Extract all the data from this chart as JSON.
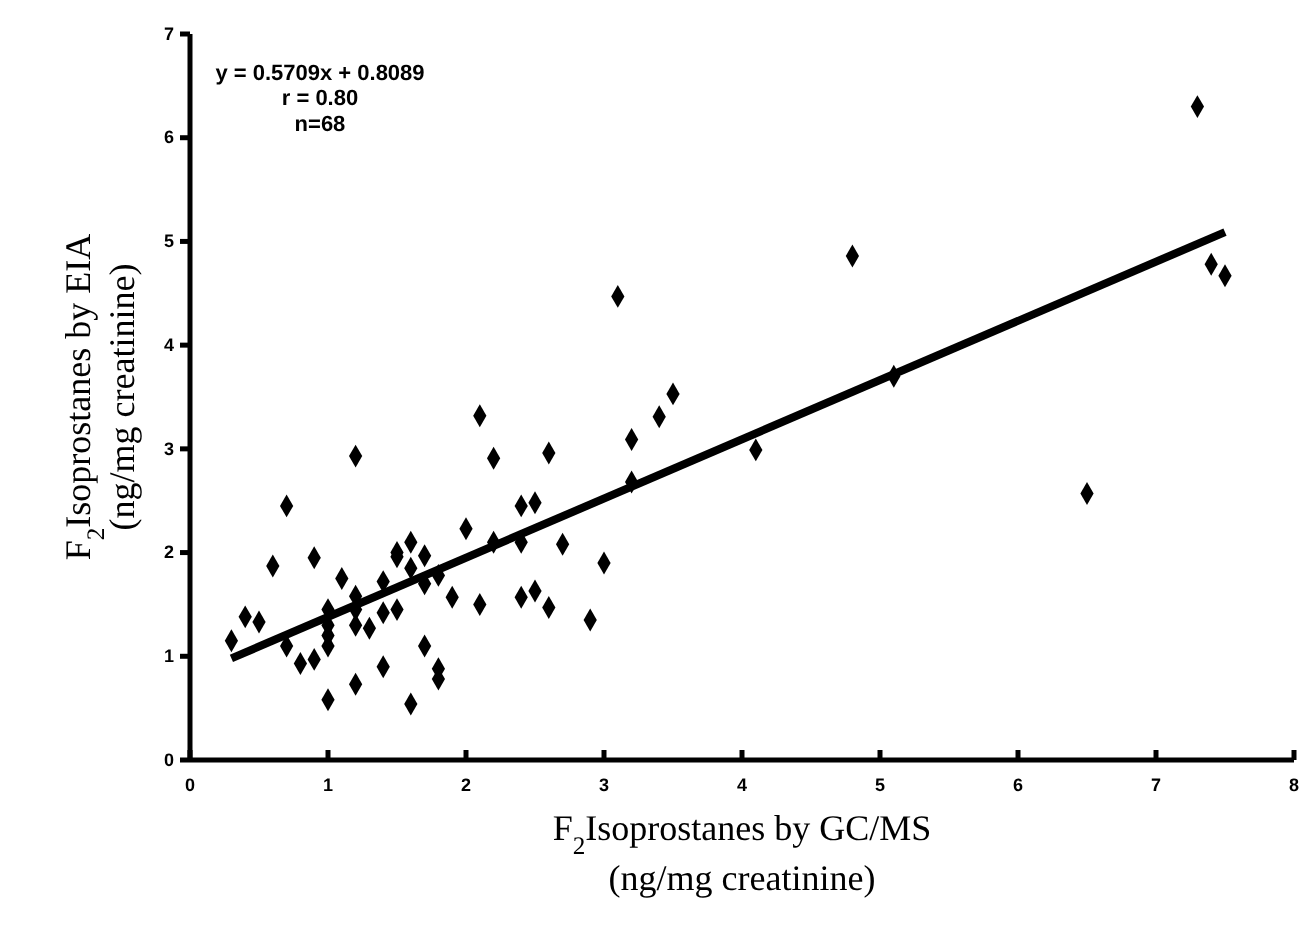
{
  "chart_data": {
    "type": "scatter",
    "xlabel": "F$_{2}$Isoprostanes by GC/MS\n(ng/mg creatinine)",
    "ylabel": "F$_{2}$Isoprostanes by EIA\n(ng/mg creatinine)",
    "annotations": [
      "y  =  0.5709x  +  0.8089\nr  =  0.80\nn=68"
    ],
    "xlim": [
      0,
      8
    ],
    "xticks": [
      0,
      1,
      2,
      3,
      4,
      5,
      6,
      7,
      8
    ],
    "ylim": [
      0,
      7
    ],
    "yticks": [
      0,
      1,
      2,
      3,
      4,
      5,
      6,
      7
    ],
    "grid": false,
    "marker": "diamond",
    "series": [
      {
        "color": "#000000",
        "x": [
          0.3,
          0.4,
          0.5,
          0.6,
          0.7,
          0.7,
          0.8,
          0.9,
          0.9,
          1.0,
          1.0,
          1.0,
          1.0,
          1.0,
          1.1,
          1.2,
          1.2,
          1.2,
          1.2,
          1.2,
          1.3,
          1.4,
          1.4,
          1.4,
          1.5,
          1.5,
          1.5,
          1.6,
          1.6,
          1.6,
          1.7,
          1.7,
          1.7,
          1.8,
          1.8,
          1.8,
          1.9,
          2.0,
          2.1,
          2.1,
          2.2,
          2.2,
          2.4,
          2.4,
          2.4,
          2.5,
          2.5,
          2.6,
          2.6,
          2.7,
          2.9,
          3.0,
          3.1,
          3.2,
          3.2,
          3.4,
          3.5,
          4.1,
          4.8,
          5.1,
          6.5,
          7.3,
          7.4,
          7.5
        ],
        "values": [
          1.15,
          1.38,
          1.33,
          1.87,
          2.45,
          1.1,
          0.93,
          0.97,
          1.95,
          0.58,
          1.1,
          1.3,
          1.45,
          1.2,
          1.75,
          2.93,
          0.73,
          1.58,
          1.3,
          1.45,
          1.27,
          1.72,
          0.9,
          1.42,
          1.45,
          1.96,
          2.0,
          0.54,
          2.1,
          1.85,
          1.97,
          1.7,
          1.1,
          0.88,
          0.78,
          1.78,
          1.57,
          2.23,
          3.32,
          1.5,
          2.91,
          2.1,
          2.45,
          2.1,
          1.57,
          2.48,
          1.63,
          2.96,
          1.47,
          2.08,
          1.35,
          1.9,
          4.47,
          3.09,
          2.68,
          3.31,
          3.53,
          2.99,
          4.86,
          3.7,
          2.57,
          6.3,
          4.78,
          4.67
        ]
      },
      {
        "type": "line",
        "color": "#000000",
        "marker": "none",
        "line_style": "solid",
        "x": [
          0.3,
          7.5
        ],
        "values": [
          0.98,
          5.09
        ]
      }
    ]
  }
}
